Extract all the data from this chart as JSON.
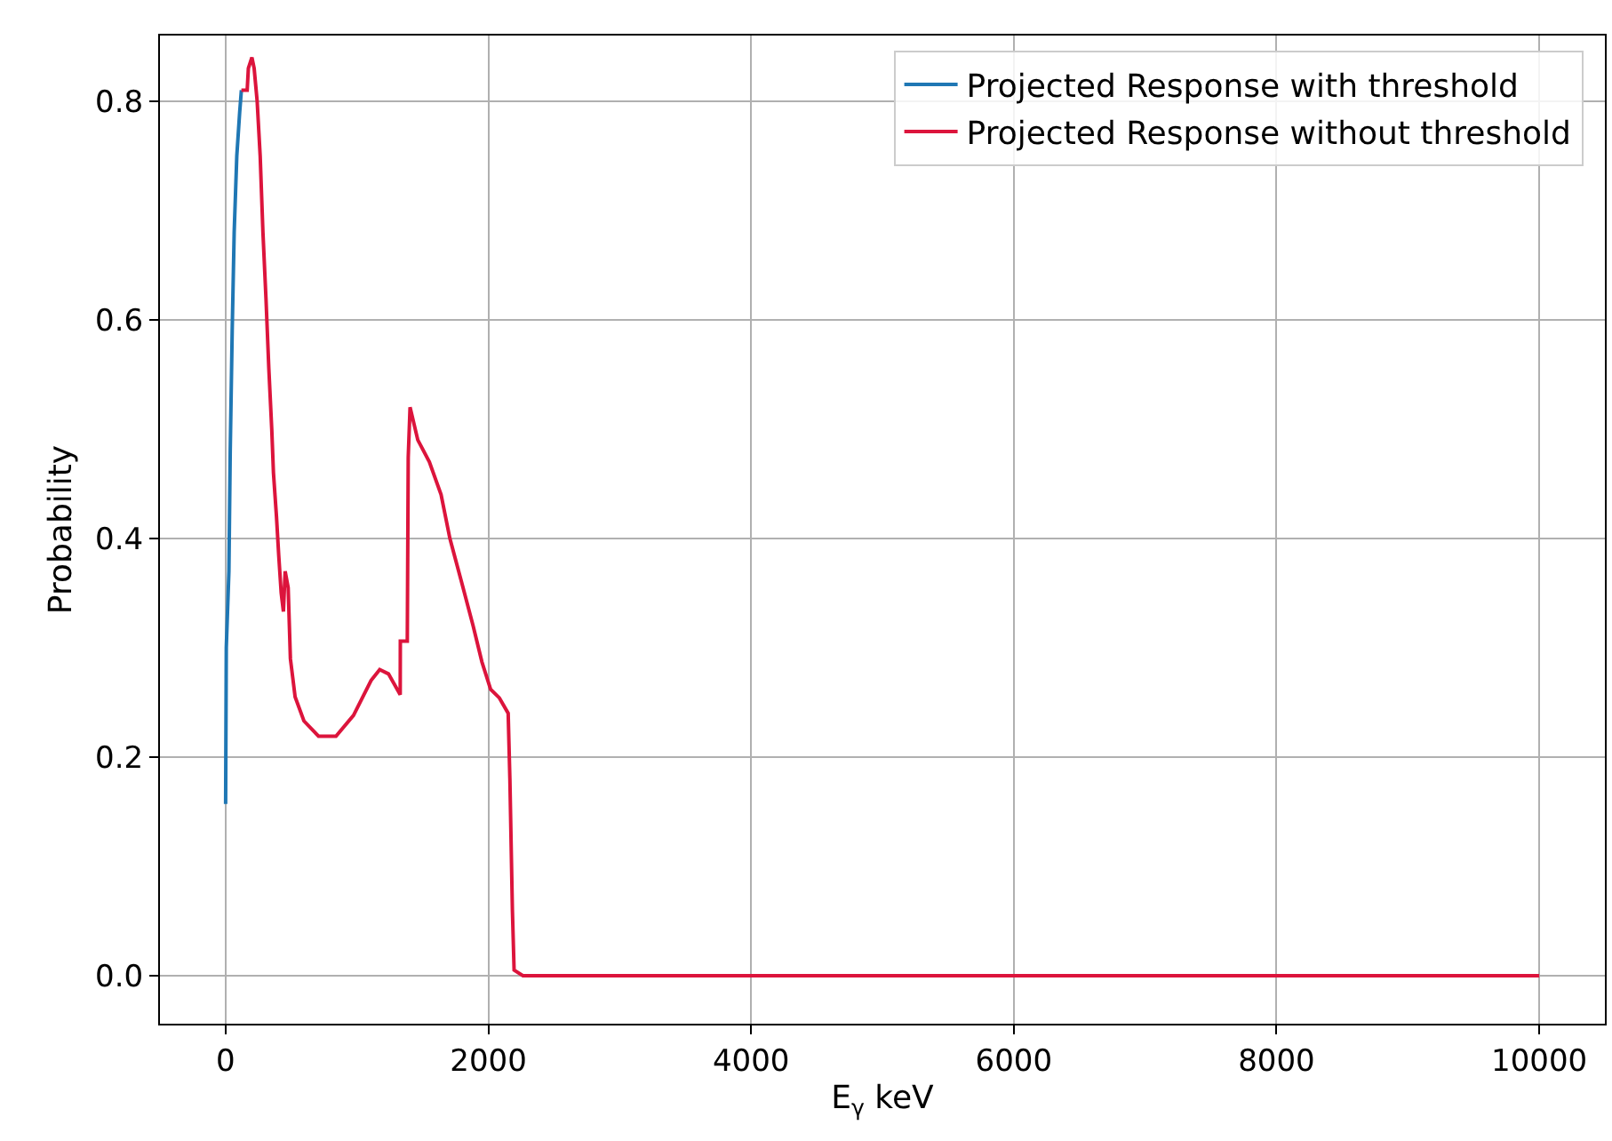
{
  "chart_data": {
    "type": "line",
    "xlabel": "E$_{γ}$ keV",
    "ylabel": "Probability",
    "xlim": [
      -500,
      10500
    ],
    "xticks": [
      0,
      2000,
      4000,
      6000,
      8000,
      10000
    ],
    "ylim": [
      -0.044,
      0.86
    ],
    "yticks": [
      {
        "value": 0,
        "label": "0.0"
      },
      0.2,
      0.4,
      0.6,
      0.8
    ],
    "grid": true,
    "legend": "top right",
    "marker": "none",
    "line_style": "solid",
    "series": [
      {
        "name": "Projected Response with threshold",
        "color": "#1f77b4",
        "x": [
          0,
          5,
          25,
          35,
          50,
          65,
          85,
          107,
          120
        ],
        "values": [
          0.157,
          0.3,
          0.37,
          0.48,
          0.59,
          0.68,
          0.75,
          0.79,
          0.81
        ]
      },
      {
        "name": "Projected Response without threshold",
        "color": "#dc143c",
        "x": [
          120,
          164,
          173,
          200,
          217,
          240,
          263,
          284,
          307,
          329,
          351,
          364,
          387,
          404,
          423,
          440,
          453,
          476,
          493,
          529,
          596,
          707,
          840,
          973,
          1107,
          1173,
          1240,
          1329,
          1330,
          1383,
          1390,
          1404,
          1463,
          1551,
          1640,
          1707,
          1796,
          1884,
          1951,
          2017,
          2084,
          2151,
          2164,
          2183,
          2196,
          2263,
          10000
        ],
        "values": [
          0.81,
          0.81,
          0.83,
          0.84,
          0.83,
          0.8,
          0.75,
          0.68,
          0.62,
          0.555,
          0.5,
          0.46,
          0.42,
          0.385,
          0.35,
          0.333,
          0.37,
          0.355,
          0.29,
          0.255,
          0.233,
          0.219,
          0.219,
          0.238,
          0.27,
          0.28,
          0.276,
          0.257,
          0.306,
          0.306,
          0.474,
          0.52,
          0.49,
          0.47,
          0.44,
          0.4,
          0.36,
          0.32,
          0.287,
          0.262,
          0.254,
          0.24,
          0.18,
          0.06,
          0.005,
          0.0,
          0.0
        ]
      }
    ]
  }
}
